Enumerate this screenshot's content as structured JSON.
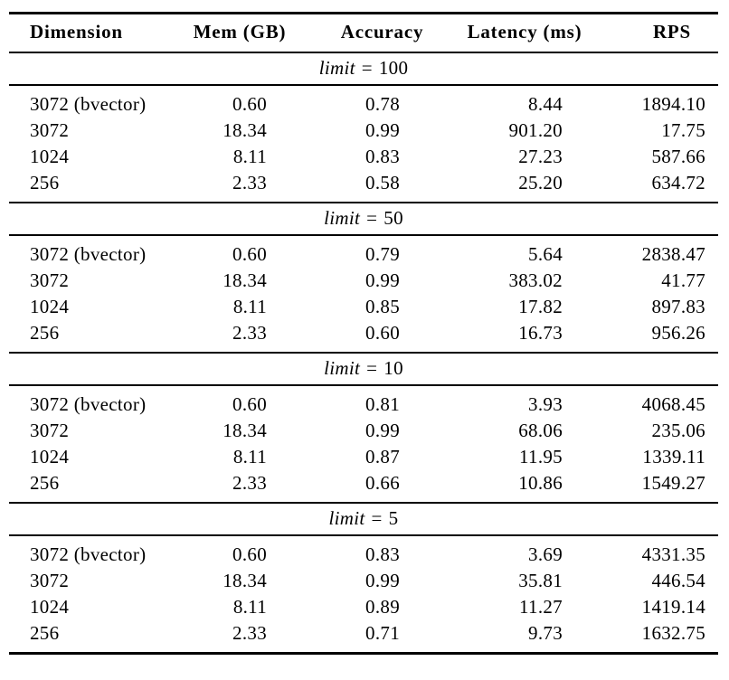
{
  "colors": {
    "background": "#ffffff",
    "text": "#000000",
    "rule": "#000000"
  },
  "header": {
    "columns": [
      {
        "key": "dimension",
        "label": "Dimension"
      },
      {
        "key": "mem_gb",
        "label": "Mem (GB)"
      },
      {
        "key": "accuracy",
        "label": "Accuracy"
      },
      {
        "key": "latency_ms",
        "label": "Latency (ms)"
      },
      {
        "key": "rps",
        "label": "RPS"
      }
    ]
  },
  "sections": [
    {
      "title": {
        "variable": "limit",
        "relation": "=",
        "value": "100"
      },
      "rows": [
        {
          "dimension": "3072 (bvector)",
          "mem_gb": "0.60",
          "accuracy": "0.78",
          "latency_ms": "8.44",
          "rps": "1894.10"
        },
        {
          "dimension": "3072",
          "mem_gb": "18.34",
          "accuracy": "0.99",
          "latency_ms": "901.20",
          "rps": "17.75"
        },
        {
          "dimension": "1024",
          "mem_gb": "8.11",
          "accuracy": "0.83",
          "latency_ms": "27.23",
          "rps": "587.66"
        },
        {
          "dimension": "256",
          "mem_gb": "2.33",
          "accuracy": "0.58",
          "latency_ms": "25.20",
          "rps": "634.72"
        }
      ]
    },
    {
      "title": {
        "variable": "limit",
        "relation": "=",
        "value": "50"
      },
      "rows": [
        {
          "dimension": "3072 (bvector)",
          "mem_gb": "0.60",
          "accuracy": "0.79",
          "latency_ms": "5.64",
          "rps": "2838.47"
        },
        {
          "dimension": "3072",
          "mem_gb": "18.34",
          "accuracy": "0.99",
          "latency_ms": "383.02",
          "rps": "41.77"
        },
        {
          "dimension": "1024",
          "mem_gb": "8.11",
          "accuracy": "0.85",
          "latency_ms": "17.82",
          "rps": "897.83"
        },
        {
          "dimension": "256",
          "mem_gb": "2.33",
          "accuracy": "0.60",
          "latency_ms": "16.73",
          "rps": "956.26"
        }
      ]
    },
    {
      "title": {
        "variable": "limit",
        "relation": "=",
        "value": "10"
      },
      "rows": [
        {
          "dimension": "3072 (bvector)",
          "mem_gb": "0.60",
          "accuracy": "0.81",
          "latency_ms": "3.93",
          "rps": "4068.45"
        },
        {
          "dimension": "3072",
          "mem_gb": "18.34",
          "accuracy": "0.99",
          "latency_ms": "68.06",
          "rps": "235.06"
        },
        {
          "dimension": "1024",
          "mem_gb": "8.11",
          "accuracy": "0.87",
          "latency_ms": "11.95",
          "rps": "1339.11"
        },
        {
          "dimension": "256",
          "mem_gb": "2.33",
          "accuracy": "0.66",
          "latency_ms": "10.86",
          "rps": "1549.27"
        }
      ]
    },
    {
      "title": {
        "variable": "limit",
        "relation": "=",
        "value": "5"
      },
      "rows": [
        {
          "dimension": "3072 (bvector)",
          "mem_gb": "0.60",
          "accuracy": "0.83",
          "latency_ms": "3.69",
          "rps": "4331.35"
        },
        {
          "dimension": "3072",
          "mem_gb": "18.34",
          "accuracy": "0.99",
          "latency_ms": "35.81",
          "rps": "446.54"
        },
        {
          "dimension": "1024",
          "mem_gb": "8.11",
          "accuracy": "0.89",
          "latency_ms": "11.27",
          "rps": "1419.14"
        },
        {
          "dimension": "256",
          "mem_gb": "2.33",
          "accuracy": "0.71",
          "latency_ms": "9.73",
          "rps": "1632.75"
        }
      ]
    }
  ]
}
